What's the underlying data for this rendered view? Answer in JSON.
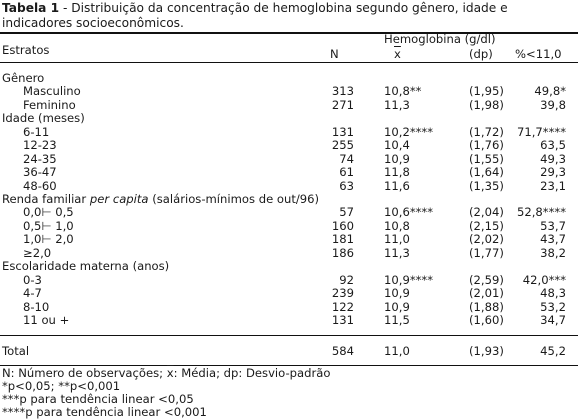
{
  "caption": {
    "label": "Tabela 1",
    "text": " - Distribuição da concentração de hemoglobina segundo gênero, idade e indicadores socioeconômicos."
  },
  "header": {
    "strata": "Estratos",
    "n": "N",
    "group": "Hemoglobina (g/dl)",
    "mean": "x",
    "dp": "(dp)",
    "pct": "%<11,0"
  },
  "sections": [
    {
      "title": "Gênero",
      "rows": [
        {
          "label": "Masculino",
          "n": "313",
          "mean": "10,8**",
          "dp": "(1,95)",
          "pct": "49,8*"
        },
        {
          "label": "Feminino",
          "n": "271",
          "mean": "11,3",
          "dp": "(1,98)",
          "pct": "39,8"
        }
      ]
    },
    {
      "title": "Idade (meses)",
      "rows": [
        {
          "label": "6-11",
          "n": "131",
          "mean": "10,2****",
          "dp": "(1,72)",
          "pct": "71,7****"
        },
        {
          "label": "12-23",
          "n": "255",
          "mean": "10,4",
          "dp": "(1,76)",
          "pct": "63,5"
        },
        {
          "label": "24-35",
          "n": "74",
          "mean": "10,9",
          "dp": "(1,55)",
          "pct": "49,3"
        },
        {
          "label": "36-47",
          "n": "61",
          "mean": "11,8",
          "dp": "(1,64)",
          "pct": "29,3"
        },
        {
          "label": "48-60",
          "n": "63",
          "mean": "11,6",
          "dp": "(1,35)",
          "pct": "23,1"
        }
      ]
    },
    {
      "title": "Renda familiar ",
      "title_em": "per capita",
      "title_rest": " (salários-mínimos de out/96)",
      "rows": [
        {
          "label": "0,0⊢ 0,5",
          "n": "57",
          "mean": "10,6****",
          "dp": "(2,04)",
          "pct": "52,8****"
        },
        {
          "label": "0,5⊢ 1,0",
          "n": "160",
          "mean": "10,8",
          "dp": "(2,15)",
          "pct": "53,7"
        },
        {
          "label": "1,0⊢ 2,0",
          "n": "181",
          "mean": "11,0",
          "dp": "(2,02)",
          "pct": "43,7"
        },
        {
          "label": "≥2,0",
          "n": "186",
          "mean": "11,3",
          "dp": "(1,77)",
          "pct": "38,2"
        }
      ]
    },
    {
      "title": "Escolaridade materna (anos)",
      "rows": [
        {
          "label": "0-3",
          "n": "92",
          "mean": "10,9****",
          "dp": "(2,59)",
          "pct": "42,0***"
        },
        {
          "label": "4-7",
          "n": "239",
          "mean": "10,9",
          "dp": "(2,01)",
          "pct": "48,3"
        },
        {
          "label": "8-10",
          "n": "122",
          "mean": "10,9",
          "dp": "(1,88)",
          "pct": "53,2"
        },
        {
          "label": "11 ou +",
          "n": "131",
          "mean": "11,5",
          "dp": "(1,60)",
          "pct": "34,7"
        }
      ]
    }
  ],
  "total": {
    "label": "Total",
    "n": "584",
    "mean": "11,0",
    "dp": "(1,93)",
    "pct": "45,2"
  },
  "footnotes": {
    "line1_a": "N: Número de observações; ",
    "line1_x": "x",
    "line1_b": ": Média; dp: Desvio-padrão",
    "line2": "*p<0,05; **p<0,001",
    "line3": "***p para tendência linear <0,05",
    "line4": "****p para tendência linear <0,001"
  }
}
